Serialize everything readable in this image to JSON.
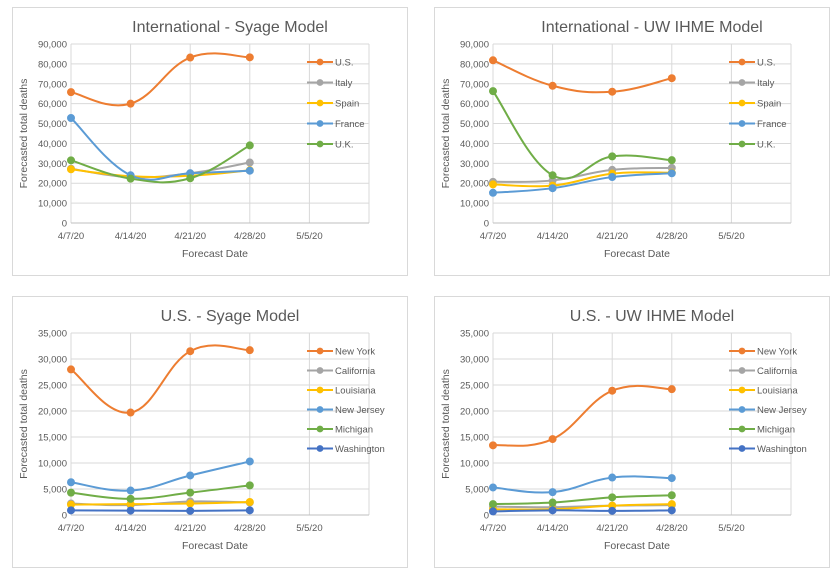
{
  "chart_data": [
    {
      "type": "line",
      "title": "International - Syage Model",
      "xlabel": "Forecast Date",
      "ylabel": "Forecasted total deaths",
      "categories": [
        "4/7/20",
        "4/14/20",
        "4/21/20",
        "4/28/20",
        "5/5/20"
      ],
      "ylim": [
        0,
        90000
      ],
      "yticks": [
        0,
        10000,
        20000,
        30000,
        40000,
        50000,
        60000,
        70000,
        80000,
        90000
      ],
      "ytick_labels": [
        "0",
        "10,000",
        "20,000",
        "30,000",
        "40,000",
        "50,000",
        "60,000",
        "70,000",
        "80,000",
        "90,000"
      ],
      "grid": true,
      "smooth": true,
      "legend": "right",
      "series": [
        {
          "name": "U.S.",
          "color": "#ed7d31",
          "values": [
            65800,
            60000,
            83200,
            83300
          ]
        },
        {
          "name": "Italy",
          "color": "#a5a5a5",
          "values": [
            27300,
            23000,
            25000,
            30400
          ]
        },
        {
          "name": "Spain",
          "color": "#ffc000",
          "values": [
            27000,
            23500,
            23800,
            26500
          ]
        },
        {
          "name": "France",
          "color": "#5b9bd5",
          "values": [
            52800,
            24000,
            25000,
            26300
          ]
        },
        {
          "name": "U.K.",
          "color": "#70ad47",
          "values": [
            31500,
            22300,
            22500,
            39000
          ]
        }
      ]
    },
    {
      "type": "line",
      "title": "International - UW IHME Model",
      "xlabel": "Forecast Date",
      "ylabel": "Forecasted total deaths",
      "categories": [
        "4/7/20",
        "4/14/20",
        "4/21/20",
        "4/28/20",
        "5/5/20"
      ],
      "ylim": [
        0,
        90000
      ],
      "yticks": [
        0,
        10000,
        20000,
        30000,
        40000,
        50000,
        60000,
        70000,
        80000,
        90000
      ],
      "ytick_labels": [
        "0",
        "10,000",
        "20,000",
        "30,000",
        "40,000",
        "50,000",
        "60,000",
        "70,000",
        "80,000",
        "90,000"
      ],
      "grid": true,
      "smooth": true,
      "legend": "right",
      "series": [
        {
          "name": "U.S.",
          "color": "#ed7d31",
          "values": [
            81800,
            69000,
            66000,
            72800
          ]
        },
        {
          "name": "Italy",
          "color": "#a5a5a5",
          "values": [
            20700,
            21400,
            26700,
            27700
          ]
        },
        {
          "name": "Spain",
          "color": "#ffc000",
          "values": [
            19400,
            18800,
            24800,
            25300
          ]
        },
        {
          "name": "France",
          "color": "#5b9bd5",
          "values": [
            15200,
            17500,
            23100,
            25000
          ]
        },
        {
          "name": "U.K.",
          "color": "#70ad47",
          "values": [
            66300,
            24000,
            33500,
            31600
          ]
        }
      ]
    },
    {
      "type": "line",
      "title": "U.S. - Syage Model",
      "xlabel": "Forecast Date",
      "ylabel": "Forecasted total deaths",
      "categories": [
        "4/7/20",
        "4/14/20",
        "4/21/20",
        "4/28/20",
        "5/5/20"
      ],
      "ylim": [
        0,
        35000
      ],
      "yticks": [
        0,
        5000,
        10000,
        15000,
        20000,
        25000,
        30000,
        35000
      ],
      "ytick_labels": [
        "0",
        "5,000",
        "10,000",
        "15,000",
        "20,000",
        "25,000",
        "30,000",
        "35,000"
      ],
      "grid": true,
      "smooth": true,
      "legend": "right",
      "series": [
        {
          "name": "New York",
          "color": "#ed7d31",
          "values": [
            28000,
            19700,
            31500,
            31700
          ]
        },
        {
          "name": "California",
          "color": "#a5a5a5",
          "values": [
            2200,
            1900,
            2600,
            2400
          ]
        },
        {
          "name": "Louisiana",
          "color": "#ffc000",
          "values": [
            2000,
            2100,
            2200,
            2500
          ]
        },
        {
          "name": "New Jersey",
          "color": "#5b9bd5",
          "values": [
            6300,
            4700,
            7600,
            10300
          ]
        },
        {
          "name": "Michigan",
          "color": "#70ad47",
          "values": [
            4300,
            3100,
            4300,
            5700
          ]
        },
        {
          "name": "Washington",
          "color": "#4472c4",
          "values": [
            900,
            850,
            800,
            900
          ]
        }
      ]
    },
    {
      "type": "line",
      "title": "U.S. - UW IHME Model",
      "xlabel": "Forecast Date",
      "ylabel": "Forecasted total deaths",
      "categories": [
        "4/7/20",
        "4/14/20",
        "4/21/20",
        "4/28/20",
        "5/5/20"
      ],
      "ylim": [
        0,
        35000
      ],
      "yticks": [
        0,
        5000,
        10000,
        15000,
        20000,
        25000,
        30000,
        35000
      ],
      "ytick_labels": [
        "0",
        "5,000",
        "10,000",
        "15,000",
        "20,000",
        "25,000",
        "30,000",
        "35,000"
      ],
      "grid": true,
      "smooth": true,
      "legend": "right",
      "series": [
        {
          "name": "New York",
          "color": "#ed7d31",
          "values": [
            13400,
            14600,
            23900,
            24200
          ]
        },
        {
          "name": "California",
          "color": "#a5a5a5",
          "values": [
            1600,
            1500,
            1800,
            1900
          ]
        },
        {
          "name": "Louisiana",
          "color": "#ffc000",
          "values": [
            1100,
            1100,
            1800,
            2100
          ]
        },
        {
          "name": "New Jersey",
          "color": "#5b9bd5",
          "values": [
            5300,
            4400,
            7200,
            7100
          ]
        },
        {
          "name": "Michigan",
          "color": "#70ad47",
          "values": [
            2100,
            2400,
            3400,
            3800
          ]
        },
        {
          "name": "Washington",
          "color": "#4472c4",
          "values": [
            700,
            900,
            800,
            900
          ]
        }
      ]
    }
  ]
}
